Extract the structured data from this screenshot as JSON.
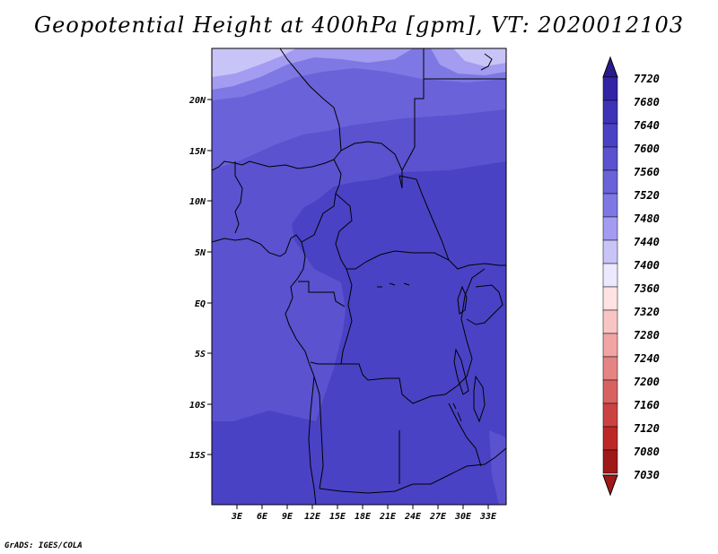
{
  "title": "Geopotential Height at 400hPa [gpm], VT: 2020012103",
  "credit": "GrADS: IGES/COLA",
  "map": {
    "lat_labels": [
      "20N",
      "15N",
      "10N",
      "5N",
      "EQ",
      "5S",
      "10S",
      "15S"
    ],
    "lon_labels": [
      "3E",
      "6E",
      "9E",
      "12E",
      "15E",
      "18E",
      "21E",
      "24E",
      "27E",
      "30E",
      "33E"
    ]
  },
  "colorbar": {
    "levels": [
      "7720",
      "7680",
      "7640",
      "7600",
      "7560",
      "7520",
      "7480",
      "7440",
      "7400",
      "7360",
      "7320",
      "7280",
      "7240",
      "7200",
      "7160",
      "7120",
      "7080",
      "7030"
    ],
    "colors": [
      "#2a1a8e",
      "#3324a6",
      "#3c32b6",
      "#4a42c4",
      "#5a52ce",
      "#6a62d8",
      "#7e78e4",
      "#a49cf0",
      "#c8c4f8",
      "#ece8ff",
      "#ffe2e2",
      "#f8c4c4",
      "#f0a4a4",
      "#e48484",
      "#d86262",
      "#cc4242",
      "#bc2828",
      "#a01818"
    ]
  },
  "icons": {
    "top_arrow": "colorbar-max-arrow",
    "bottom_arrow": "colorbar-min-arrow"
  }
}
